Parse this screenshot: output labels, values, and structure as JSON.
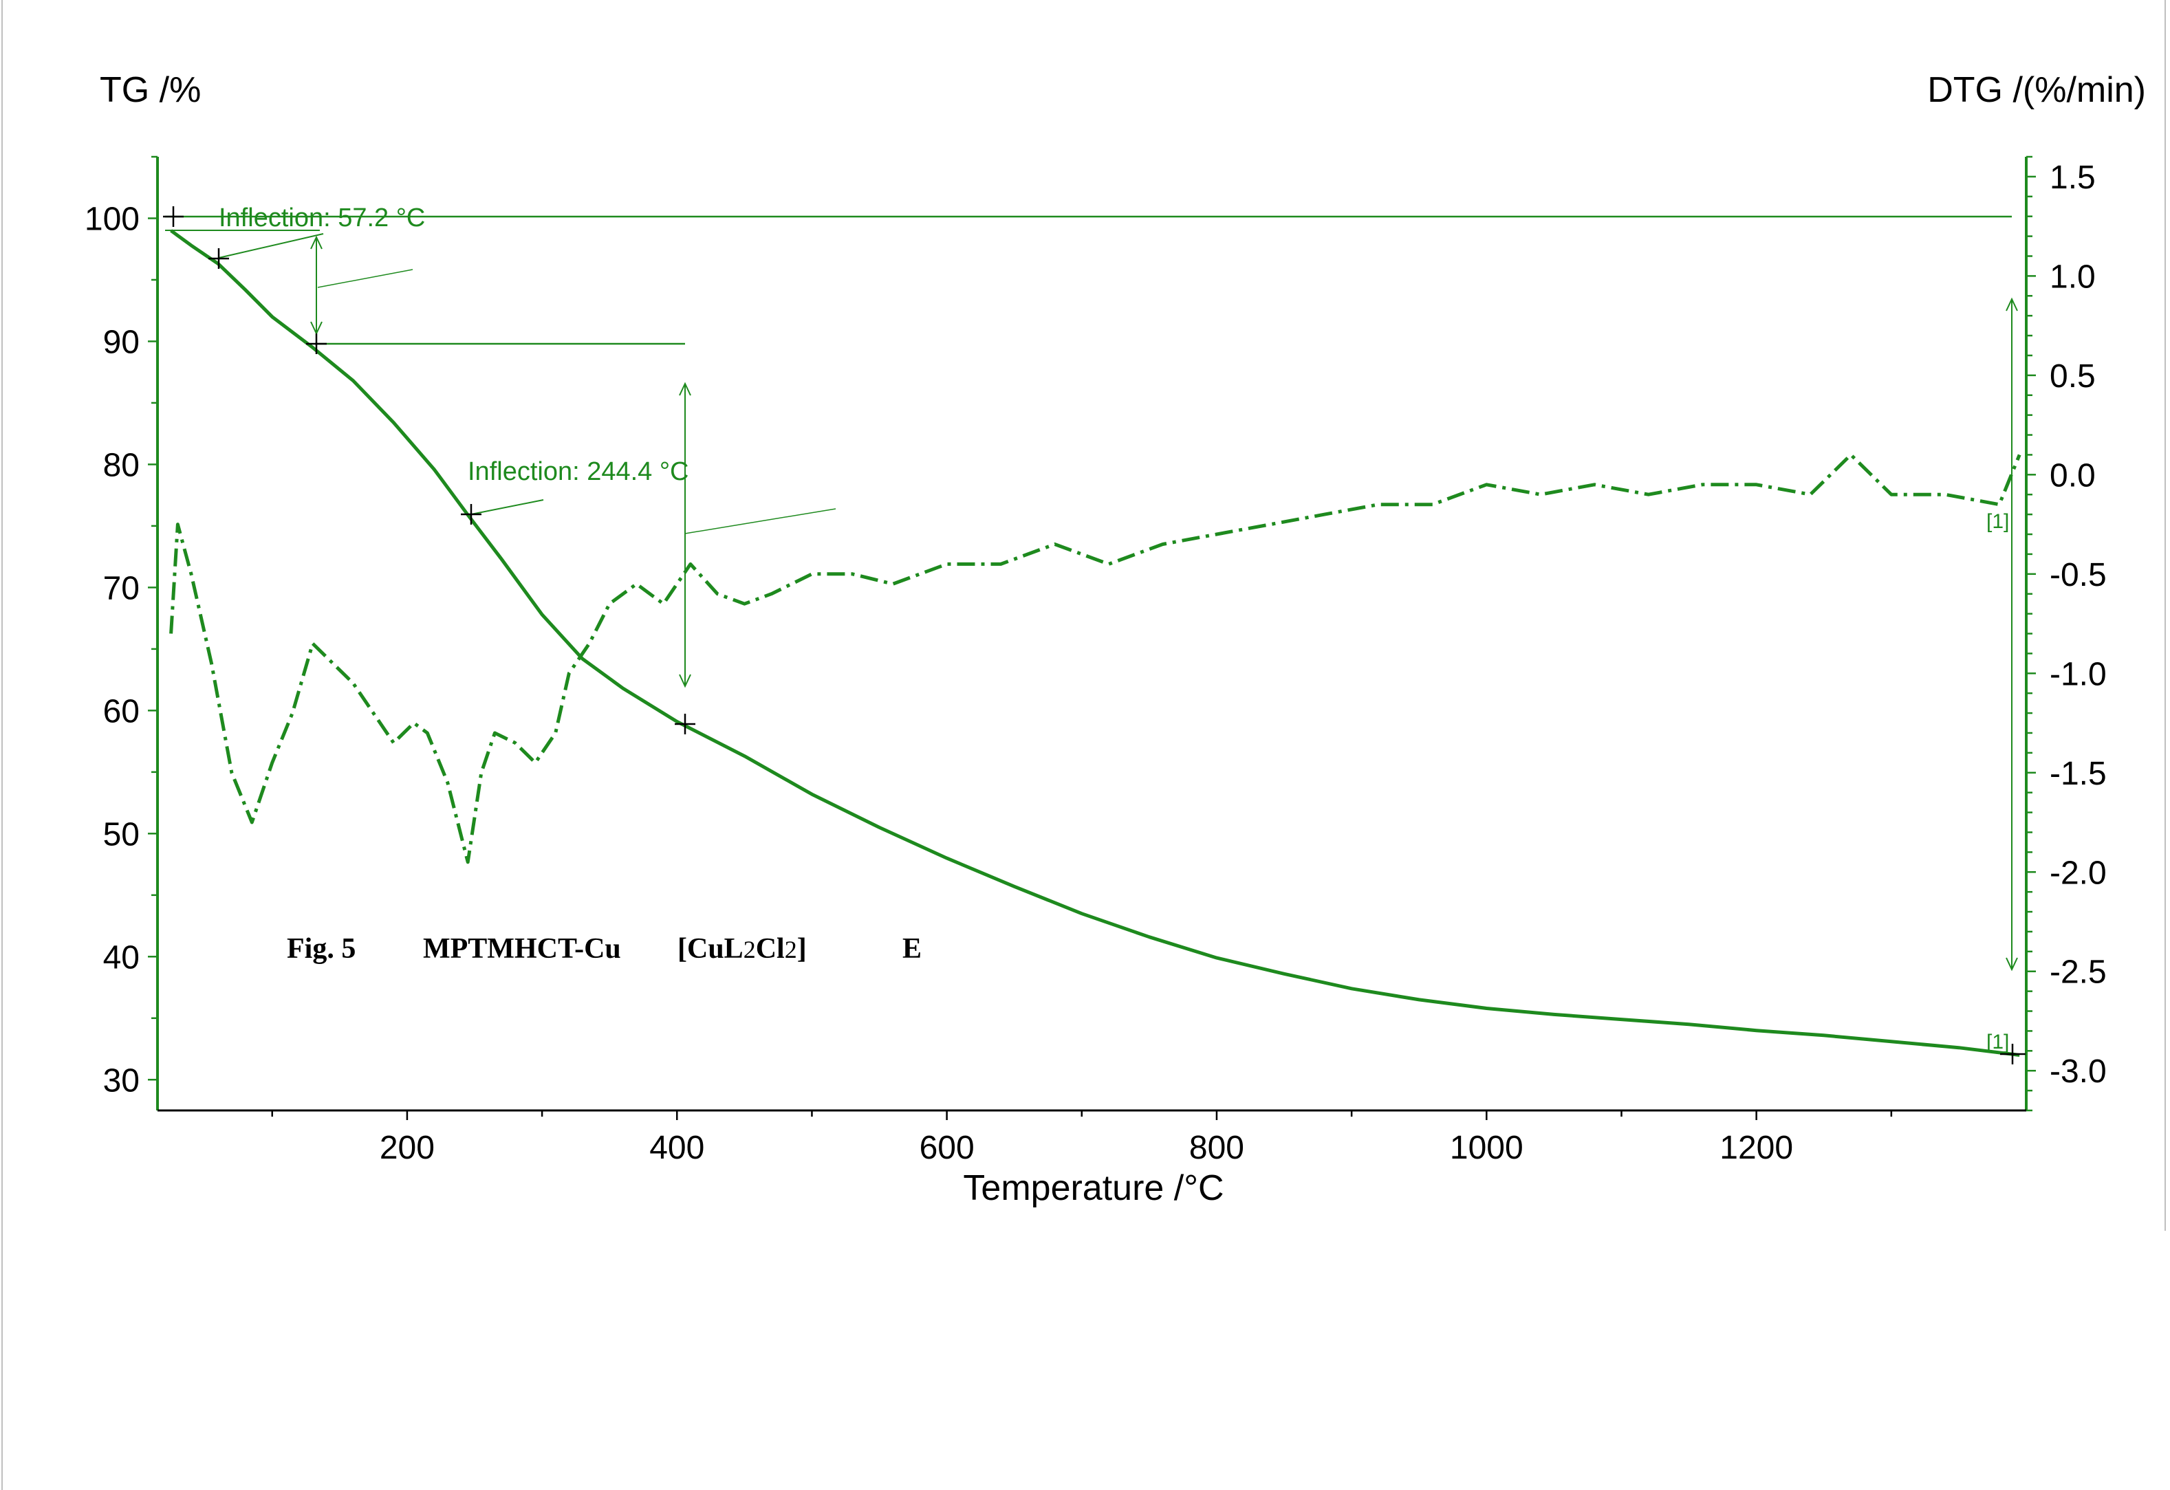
{
  "chart_data": {
    "type": "line",
    "x_axis": {
      "label": "Temperature /°C",
      "range": [
        15,
        1400
      ],
      "ticks": [
        200,
        400,
        600,
        800,
        1000,
        1200
      ]
    },
    "y_left": {
      "label": "TG /%",
      "range": [
        27.5,
        105
      ],
      "ticks": [
        30,
        40,
        50,
        60,
        70,
        80,
        90,
        100
      ]
    },
    "y_right": {
      "label": "DTG /(%/min)",
      "range": [
        -3.2,
        1.6
      ],
      "ticks": [
        "1.5",
        "1.0",
        "0.5",
        "0.0",
        "-0.5",
        "-1.0",
        "-1.5",
        "-2.0",
        "-2.5",
        "-3.0"
      ]
    },
    "series": [
      {
        "axis": "left",
        "line_style": "solid",
        "x": [
          25,
          40,
          60,
          80,
          100,
          130,
          160,
          190,
          220,
          245,
          270,
          300,
          330,
          360,
          400,
          450,
          500,
          550,
          600,
          650,
          700,
          750,
          800,
          850,
          900,
          950,
          1000,
          1050,
          1100,
          1150,
          1200,
          1250,
          1300,
          1350,
          1395
        ],
        "y": [
          99,
          97.8,
          96.3,
          94.2,
          92,
          89.5,
          86.8,
          83.4,
          79.6,
          75.9,
          72.3,
          67.8,
          64.2,
          61.8,
          59.1,
          56.3,
          53.2,
          50.5,
          48,
          45.7,
          43.5,
          41.6,
          39.9,
          38.6,
          37.4,
          36.5,
          35.8,
          35.3,
          34.9,
          34.5,
          34,
          33.6,
          33.1,
          32.6,
          32
        ]
      },
      {
        "axis": "right",
        "line_style": "dash-dot",
        "x": [
          25,
          30,
          40,
          55,
          70,
          85,
          100,
          115,
          130,
          145,
          160,
          175,
          190,
          205,
          215,
          230,
          245,
          255,
          265,
          280,
          295,
          310,
          320,
          335,
          350,
          370,
          390,
          410,
          430,
          450,
          470,
          500,
          530,
          560,
          600,
          640,
          680,
          720,
          760,
          800,
          840,
          880,
          920,
          960,
          1000,
          1040,
          1080,
          1120,
          1160,
          1200,
          1240,
          1270,
          1300,
          1340,
          1380,
          1395
        ],
        "y": [
          -0.8,
          -0.25,
          -0.5,
          -0.95,
          -1.5,
          -1.75,
          -1.45,
          -1.2,
          -0.85,
          -0.95,
          -1.05,
          -1.2,
          -1.35,
          -1.25,
          -1.3,
          -1.55,
          -1.95,
          -1.5,
          -1.3,
          -1.35,
          -1.45,
          -1.3,
          -1.0,
          -0.85,
          -0.65,
          -0.55,
          -0.65,
          -0.45,
          -0.6,
          -0.65,
          -0.6,
          -0.5,
          -0.5,
          -0.55,
          -0.45,
          -0.45,
          -0.35,
          -0.45,
          -0.35,
          -0.3,
          -0.25,
          -0.2,
          -0.15,
          -0.15,
          -0.05,
          -0.1,
          -0.05,
          -0.1,
          -0.05,
          -0.05,
          -0.1,
          0.1,
          -0.1,
          -0.1,
          -0.15,
          0.1
        ]
      }
    ],
    "annotations": [
      {
        "text": "Inflection: 57.2 °C"
      },
      {
        "text": "Inflection: 244.4 °C"
      },
      {
        "text": "[1]"
      },
      {
        "text": "[1]"
      }
    ],
    "caption": {
      "fig": "Fig. 5",
      "compound": "MPTMHCT-Cu",
      "formula_open": "[CuL",
      "sub1": "2",
      "formula_mid": "Cl",
      "sub2": "2",
      "formula_close": "]",
      "letter": "E"
    },
    "grid": false,
    "color": "#1e8a1e"
  }
}
